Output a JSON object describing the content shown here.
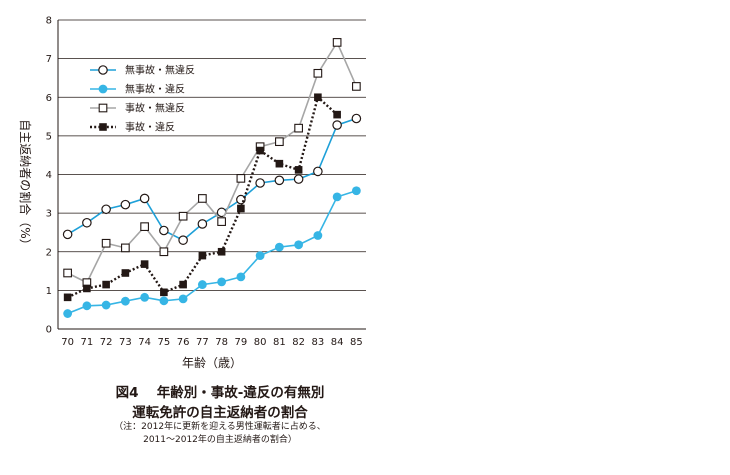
{
  "chart_data": {
    "type": "line",
    "ylabel": "自主返納者の割合（%）",
    "xlabel": "年齢（歳）",
    "ylim": [
      0,
      8
    ],
    "yticks": [
      "0",
      "1",
      "2",
      "3",
      "4",
      "5",
      "6",
      "7",
      "8"
    ],
    "categories": [
      "70",
      "71",
      "72",
      "73",
      "74",
      "75",
      "76",
      "77",
      "78",
      "79",
      "80",
      "81",
      "82",
      "83",
      "84",
      "85"
    ],
    "grid": "horizontal",
    "legend_position": "top-left",
    "series": [
      {
        "name": "無事故・無違反",
        "color": "#1ea0d8",
        "marker": "open-circle",
        "line": "solid",
        "values": [
          2.45,
          2.75,
          3.1,
          3.22,
          3.38,
          2.55,
          2.3,
          2.72,
          3.02,
          3.35,
          3.78,
          3.85,
          3.88,
          4.08,
          5.28,
          5.45
        ]
      },
      {
        "name": "無事故・違反",
        "color": "#36b5e5",
        "marker": "filled-circle",
        "line": "solid",
        "values": [
          0.4,
          0.6,
          0.62,
          0.72,
          0.82,
          0.73,
          0.78,
          1.15,
          1.22,
          1.35,
          1.9,
          2.12,
          2.18,
          2.42,
          3.42,
          3.58
        ]
      },
      {
        "name": "事故・無違反",
        "color": "#a6a6a6",
        "marker": "open-square",
        "line": "solid",
        "values": [
          1.45,
          1.2,
          2.22,
          2.1,
          2.65,
          2.0,
          2.92,
          3.38,
          2.78,
          3.9,
          4.72,
          4.85,
          5.2,
          6.62,
          7.42,
          6.28
        ]
      },
      {
        "name": "事故・違反",
        "color": "#231815",
        "marker": "filled-square",
        "line": "dotted",
        "values": [
          0.82,
          1.05,
          1.15,
          1.45,
          1.68,
          0.95,
          1.15,
          1.9,
          2.0,
          3.12,
          4.62,
          4.28,
          4.12,
          6.0,
          5.55,
          null
        ]
      }
    ]
  },
  "caption": {
    "title_line1": "図4　 年齢別・事故-違反の有無別",
    "title_line2": "運転免許の自主返納者の割合",
    "note_line1": "（注：2012年に更新を迎える男性運転者に占める、",
    "note_line2": "2011～2012年の自主返納者の割合）"
  }
}
